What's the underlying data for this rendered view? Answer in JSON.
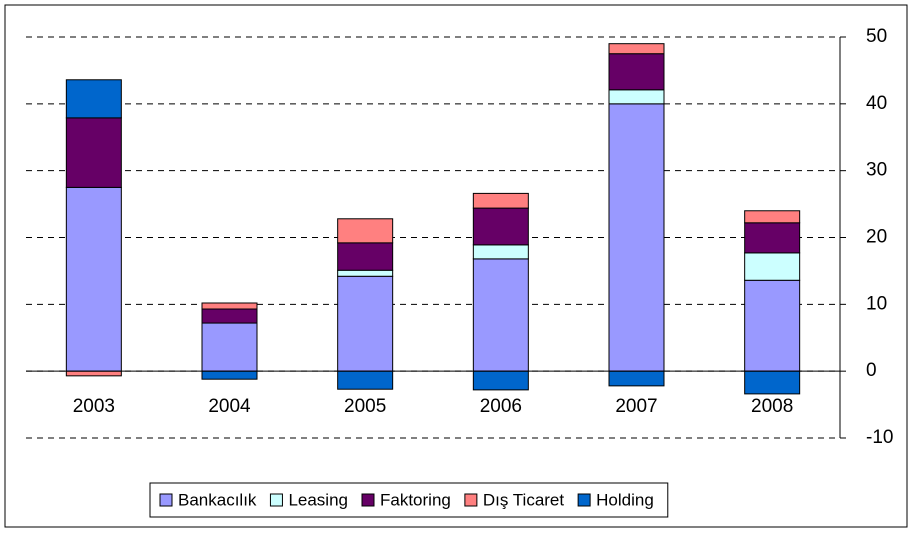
{
  "chart_data": {
    "type": "bar",
    "stacked": true,
    "categories": [
      "2003",
      "2004",
      "2005",
      "2006",
      "2007",
      "2008"
    ],
    "series": [
      {
        "name": "Bankacılık",
        "color": "#9999ff",
        "values": [
          27.5,
          7.2,
          14.2,
          16.8,
          40.0,
          13.6
        ]
      },
      {
        "name": "Leasing",
        "color": "#ccffff",
        "values": [
          0,
          0,
          0.9,
          2.1,
          2.1,
          4.1
        ]
      },
      {
        "name": "Faktoring",
        "color": "#660066",
        "values": [
          10.4,
          2.1,
          4.1,
          5.5,
          5.4,
          4.5
        ]
      },
      {
        "name": "Dış Ticaret",
        "color": "#ff8080",
        "values": [
          -0.7,
          0.9,
          3.6,
          2.2,
          1.5,
          1.8
        ]
      },
      {
        "name": "Holding",
        "color": "#0066cc",
        "values": [
          5.7,
          -1.2,
          -2.7,
          -2.8,
          -2.2,
          -3.4
        ]
      }
    ],
    "ylim": [
      -10,
      50
    ],
    "yticks": [
      -10,
      0,
      10,
      20,
      30,
      40,
      50
    ],
    "grid": true,
    "legend": "bottom"
  }
}
